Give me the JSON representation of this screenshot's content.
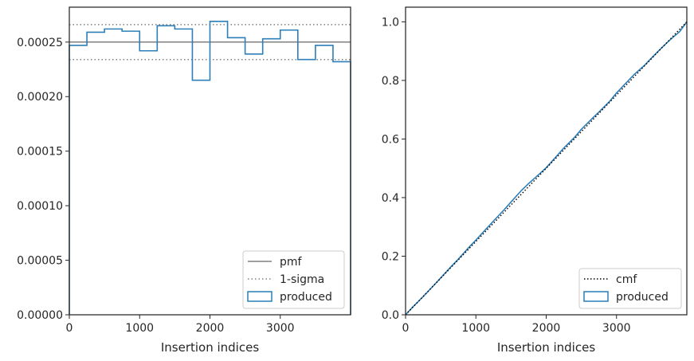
{
  "chart_data": [
    {
      "type": "histogram",
      "xlabel": "Insertion indices",
      "ylabel": "",
      "xlim": [
        0,
        4000
      ],
      "ylim": [
        0,
        0.000282
      ],
      "xticks": [
        0,
        1000,
        2000,
        3000
      ],
      "xtick_labels": [
        "0",
        "1000",
        "2000",
        "3000"
      ],
      "yticks": [
        0,
        5e-05,
        0.0001,
        0.00015,
        0.0002,
        0.00025
      ],
      "ytick_labels": [
        "0.00000",
        "0.00005",
        "0.00010",
        "0.00015",
        "0.00020",
        "0.00025"
      ],
      "pmf": 0.00025,
      "sigma_lower": 0.000234,
      "sigma_upper": 0.000266,
      "bin_edges": [
        0,
        250,
        500,
        750,
        1000,
        1250,
        1500,
        1750,
        2000,
        2250,
        2500,
        2750,
        3000,
        3250,
        3500,
        3750,
        4000
      ],
      "series": [
        {
          "name": "produced",
          "values": [
            0.000247,
            0.000259,
            0.000262,
            0.00026,
            0.000242,
            0.000265,
            0.000262,
            0.000215,
            0.000269,
            0.000254,
            0.000239,
            0.000253,
            0.000261,
            0.000234,
            0.000247,
            0.000232
          ]
        }
      ],
      "legend": {
        "position": "lower-right",
        "entries": [
          {
            "label": "pmf",
            "style": "solid",
            "color": "#808080"
          },
          {
            "label": "1-sigma",
            "style": "dotted",
            "color": "#808080"
          },
          {
            "label": "produced",
            "style": "box",
            "color": "#1f77b4"
          }
        ]
      },
      "colors": {
        "produced": "#2c7fb8",
        "pmf": "#808080"
      }
    },
    {
      "type": "line",
      "xlabel": "Insertion indices",
      "ylabel": "",
      "xlim": [
        0,
        4000
      ],
      "ylim": [
        0,
        1.05
      ],
      "xticks": [
        0,
        1000,
        2000,
        3000
      ],
      "xtick_labels": [
        "0",
        "1000",
        "2000",
        "3000"
      ],
      "yticks": [
        0,
        0.2,
        0.4,
        0.6,
        0.8,
        1.0
      ],
      "ytick_labels": [
        "0.0",
        "0.2",
        "0.4",
        "0.6",
        "0.8",
        "1.0"
      ],
      "series": [
        {
          "name": "cmf",
          "style": "dotted",
          "color": "#000000",
          "x": [
            0,
            4000
          ],
          "y": [
            0,
            1.0
          ]
        },
        {
          "name": "produced",
          "style": "solid",
          "color": "#1f77b4",
          "x": [
            0,
            100,
            250,
            400,
            500,
            650,
            750,
            900,
            1000,
            1150,
            1250,
            1400,
            1500,
            1650,
            1750,
            1900,
            2000,
            2150,
            2250,
            2400,
            2500,
            2650,
            2750,
            2900,
            3000,
            3150,
            3250,
            3400,
            3500,
            3650,
            3750,
            3900,
            4000
          ],
          "y": [
            0,
            0.026,
            0.062,
            0.1,
            0.126,
            0.165,
            0.19,
            0.23,
            0.255,
            0.294,
            0.32,
            0.358,
            0.385,
            0.425,
            0.448,
            0.48,
            0.502,
            0.542,
            0.569,
            0.605,
            0.633,
            0.669,
            0.692,
            0.728,
            0.757,
            0.795,
            0.82,
            0.852,
            0.877,
            0.913,
            0.936,
            0.967,
            1.0
          ]
        }
      ],
      "legend": {
        "position": "lower-right",
        "entries": [
          {
            "label": "cmf",
            "style": "dotted",
            "color": "#000000"
          },
          {
            "label": "produced",
            "style": "box",
            "color": "#1f77b4"
          }
        ]
      }
    }
  ]
}
